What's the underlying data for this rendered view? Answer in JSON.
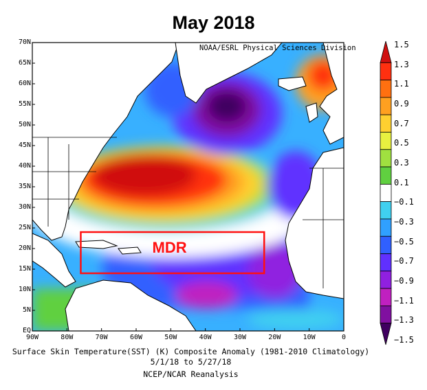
{
  "title": "May 2018",
  "credit": "NOAA/ESRL Physical Sciences Division",
  "caption": {
    "line1": "Surface Skin Temperature(SST) (K) Composite Anomaly (1981-2010 Climatology)",
    "line2": "5/1/18  to 5/27/18",
    "line3": "NCEP/NCAR Reanalysis"
  },
  "map": {
    "lat_labels": [
      "70N",
      "65N",
      "60N",
      "55N",
      "50N",
      "45N",
      "40N",
      "35N",
      "30N",
      "25N",
      "20N",
      "15N",
      "10N",
      "5N",
      "EQ"
    ],
    "lon_labels": [
      "90W",
      "80W",
      "70W",
      "60W",
      "50W",
      "40W",
      "30W",
      "20W",
      "10W",
      "0"
    ],
    "lat_range": [
      0,
      70
    ],
    "lon_range": [
      -90,
      0
    ],
    "region": {
      "label": "MDR",
      "lon": [
        -76,
        -23
      ],
      "lat": [
        14,
        24
      ],
      "color": "#ff1010"
    }
  },
  "colorbar": {
    "labels": [
      "1.5",
      "1.3",
      "1.1",
      "0.9",
      "0.7",
      "0.5",
      "0.3",
      "0.1",
      "−0.1",
      "−0.3",
      "−0.5",
      "−0.7",
      "−0.9",
      "−1.1",
      "−1.3",
      "−1.5"
    ],
    "colors": [
      "#d01010",
      "#ff3010",
      "#ff7010",
      "#ffa020",
      "#ffd030",
      "#e8f040",
      "#a0e040",
      "#60d040",
      "#ffffff",
      "#40d0f0",
      "#30a0ff",
      "#3060ff",
      "#6030ff",
      "#9020e0",
      "#c020c0",
      "#8010a0",
      "#400060"
    ]
  },
  "colors": {
    "ocean_base": "#2da0ff",
    "land": "#ffffff",
    "border": "#000000"
  }
}
